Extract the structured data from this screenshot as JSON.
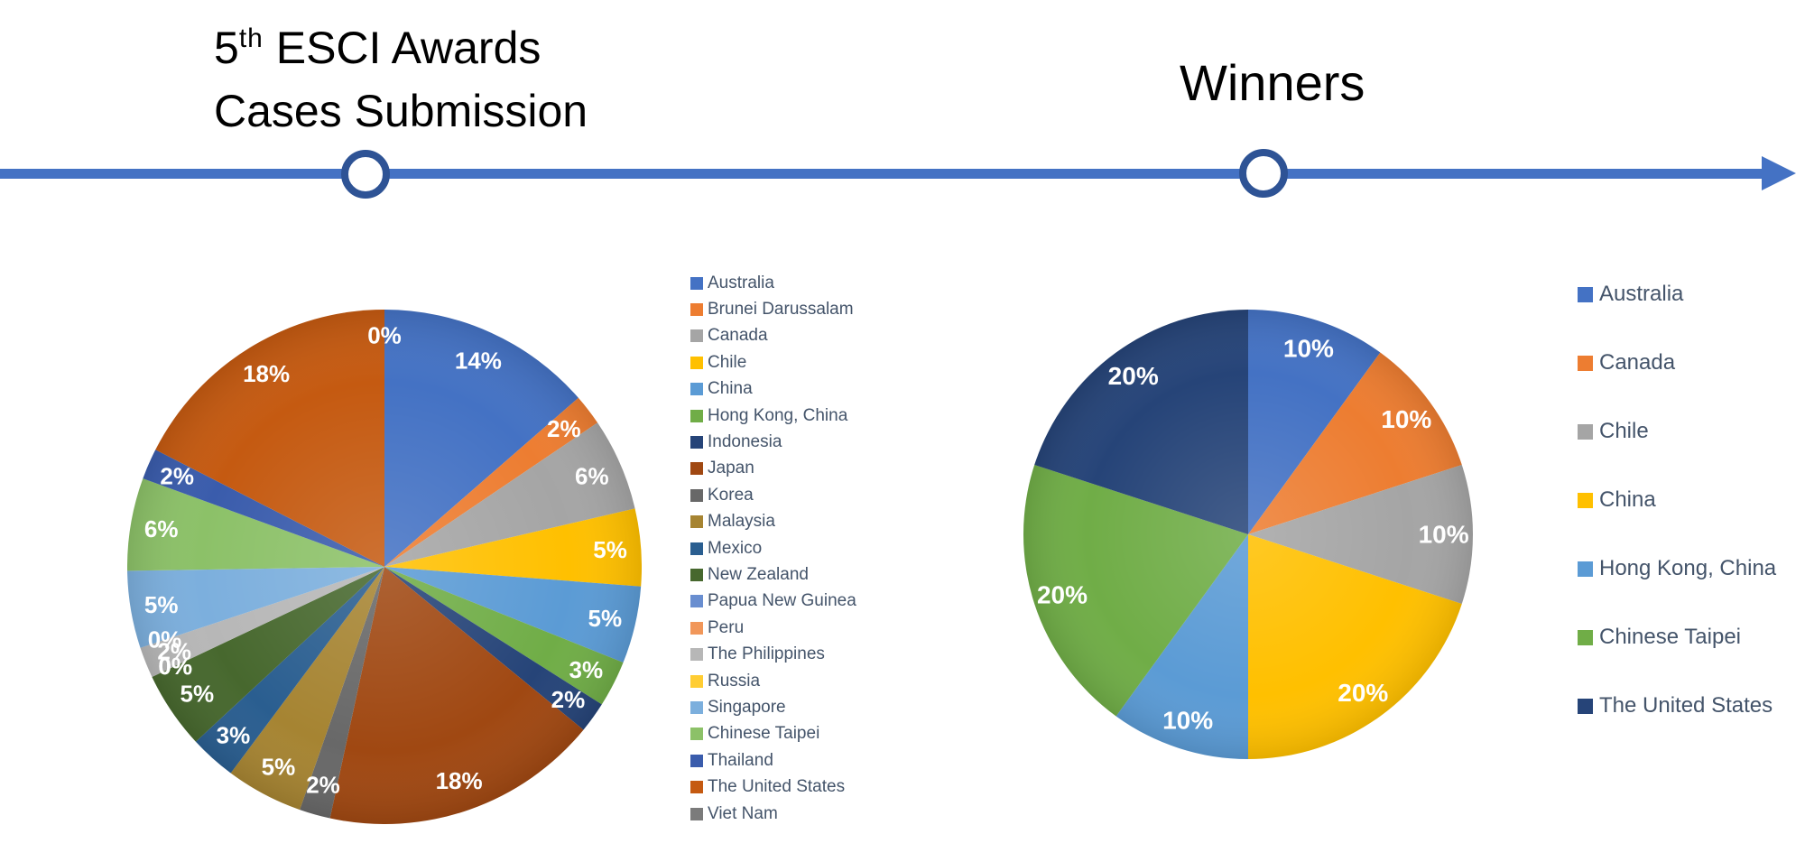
{
  "titles": {
    "left_line1_pre": "5",
    "left_line1_sup": "th",
    "left_line1_rest": " ESCI Awards",
    "left_line2": "Cases Submission",
    "right": "Winners"
  },
  "timeline": {
    "line_color": "#4472C4",
    "arrow_color": "#4472C4",
    "milestone_circle_border_color": "#2E5395",
    "milestone_circle_fill": "#FFFFFF"
  },
  "chart_data": [
    {
      "type": "pie",
      "title": "5th ESCI Awards Cases Submission",
      "legend_position": "right",
      "label_format": "percent",
      "categories": [
        "Australia",
        "Brunei Darussalam",
        "Canada",
        "Chile",
        "China",
        "Hong Kong, China",
        "Indonesia",
        "Japan",
        "Korea",
        "Malaysia",
        "Mexico",
        "New Zealand",
        "Papua New Guinea",
        "Peru",
        "The Philippines",
        "Russia",
        "Singapore",
        "Chinese Taipei",
        "Thailand",
        "The United States",
        "Viet Nam"
      ],
      "values": [
        14,
        2,
        6,
        5,
        5,
        3,
        2,
        18,
        2,
        5,
        3,
        5,
        0,
        0,
        2,
        0,
        5,
        6,
        2,
        18,
        0
      ],
      "labels": [
        "14%",
        "2%",
        "6%",
        "5%",
        "5%",
        "3%",
        "2%",
        "18%",
        "2%",
        "5%",
        "3%",
        "5%",
        "0%",
        "0%",
        "2%",
        "0%",
        "5%",
        "6%",
        "2%",
        "18%",
        "0%"
      ],
      "colors": [
        "#4472C4",
        "#ED7D31",
        "#A5A5A5",
        "#FFC000",
        "#5B9BD5",
        "#70AD47",
        "#264478",
        "#A04812",
        "#686868",
        "#A68432",
        "#2A5E90",
        "#47682E",
        "#698ED0",
        "#F1975A",
        "#B7B7B7",
        "#FFCD33",
        "#7CAFDD",
        "#8CC168",
        "#3A5CAC",
        "#C55A11",
        "#7B7B7B"
      ]
    },
    {
      "type": "pie",
      "title": "Winners",
      "legend_position": "right",
      "label_format": "percent",
      "categories": [
        "Australia",
        "Canada",
        "Chile",
        "China",
        "Hong Kong, China",
        "Chinese Taipei",
        "The United States"
      ],
      "values": [
        10,
        10,
        10,
        20,
        10,
        20,
        20
      ],
      "labels": [
        "10%",
        "10%",
        "10%",
        "20%",
        "10%",
        "20%",
        "20%"
      ],
      "colors": [
        "#4472C4",
        "#ED7D31",
        "#A5A5A5",
        "#FFC000",
        "#5B9BD5",
        "#70AD47",
        "#264478"
      ]
    }
  ]
}
